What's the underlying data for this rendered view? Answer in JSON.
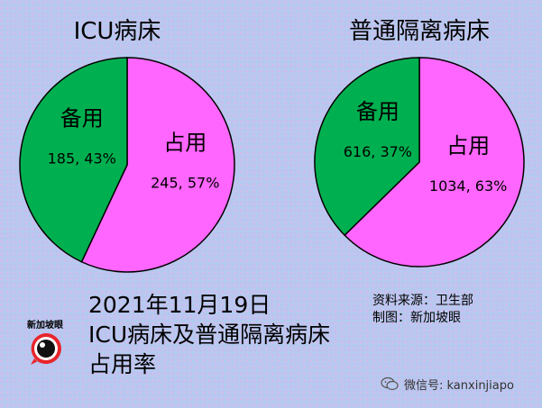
{
  "chart_data": [
    {
      "type": "pie",
      "title": "ICU病床",
      "slices": [
        {
          "label": "占用",
          "value": 245,
          "percent": "57%",
          "color": "#ff66ff"
        },
        {
          "label": "备用",
          "value": 185,
          "percent": "43%",
          "color": "#00b050"
        }
      ]
    },
    {
      "type": "pie",
      "title": "普通隔离病床",
      "slices": [
        {
          "label": "占用",
          "value": 1034,
          "percent": "63%",
          "color": "#ff66ff"
        },
        {
          "label": "备用",
          "value": 616,
          "percent": "37%",
          "color": "#00b050"
        }
      ]
    }
  ],
  "caption": {
    "line1": "2021年11月19日",
    "line2": "ICU病床及普通隔离病床",
    "line3": "占用率"
  },
  "source": {
    "line1": "资料来源：卫生部",
    "line2": "制图：新加坡眼"
  },
  "logo": {
    "text": "新加坡眼",
    "icon": "eye-logo-icon"
  },
  "watermark": {
    "text": "微信号: kanxinjiapo",
    "icon": "wechat-icon"
  }
}
